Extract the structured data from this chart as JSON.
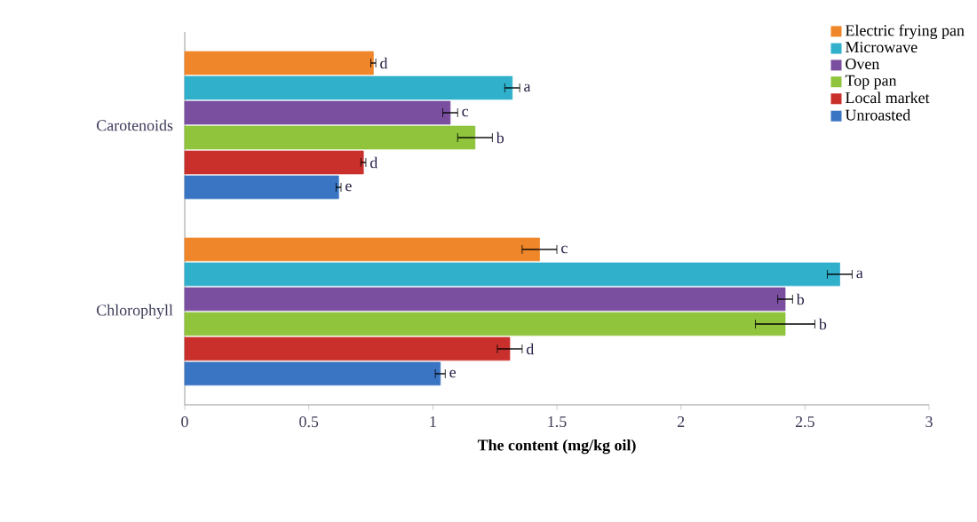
{
  "chart_data": {
    "type": "bar",
    "orientation": "horizontal",
    "xlabel": "The content (mg/kg oil)",
    "categories": [
      "Carotenoids",
      "Chlorophyll"
    ],
    "series": [
      {
        "name": "Unroasted",
        "color": "#3a75c4",
        "values": [
          0.62,
          1.03
        ],
        "errors": [
          0.01,
          0.02
        ],
        "value_labels": [
          "e",
          "e"
        ]
      },
      {
        "name": "Local market",
        "color": "#c9302c",
        "values": [
          0.72,
          1.31
        ],
        "errors": [
          0.01,
          0.05
        ],
        "value_labels": [
          "d",
          "d"
        ]
      },
      {
        "name": "Top pan",
        "color": "#8fc43c",
        "values": [
          1.17,
          2.42
        ],
        "errors": [
          0.07,
          0.12
        ],
        "value_labels": [
          "b",
          "b"
        ]
      },
      {
        "name": "Oven",
        "color": "#7a4fa0",
        "values": [
          1.07,
          2.42
        ],
        "errors": [
          0.03,
          0.03
        ],
        "value_labels": [
          "c",
          "b"
        ]
      },
      {
        "name": "Microwave",
        "color": "#31b0cc",
        "values": [
          1.32,
          2.64
        ],
        "errors": [
          0.03,
          0.05
        ],
        "value_labels": [
          "a",
          "a"
        ]
      },
      {
        "name": "Electric frying pan",
        "color": "#f0862a",
        "values": [
          0.76,
          1.43
        ],
        "errors": [
          0.01,
          0.07
        ],
        "value_labels": [
          "d",
          "c"
        ]
      }
    ],
    "xlim": [
      0,
      3
    ],
    "xticks": [
      0,
      0.5,
      1,
      1.5,
      2,
      2.5,
      3
    ],
    "grid": false,
    "legend": "top right"
  }
}
